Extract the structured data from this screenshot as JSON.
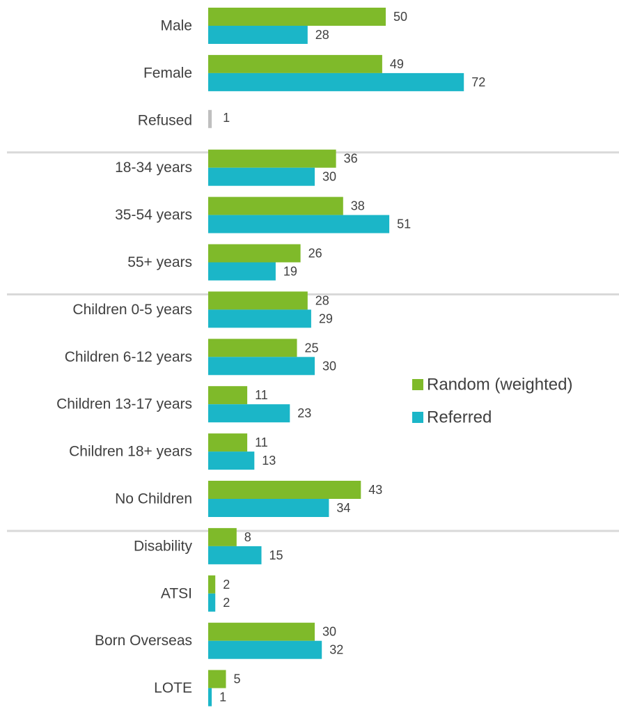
{
  "chart_data": {
    "type": "bar",
    "orientation": "horizontal",
    "xlim": [
      0,
      100
    ],
    "grid": false,
    "legend_position": "right",
    "categories": [
      "Male",
      "Female",
      "Refused",
      "18-34 years",
      "35-54 years",
      "55+ years",
      "Children 0-5 years",
      "Children 6-12 years",
      "Children 13-17 years",
      "Children 18+ years",
      "No Children",
      "Disability",
      "ATSI",
      "Born Overseas",
      "LOTE"
    ],
    "groups": [
      [
        "Male",
        "Female",
        "Refused"
      ],
      [
        "18-34 years",
        "35-54 years",
        "55+ years"
      ],
      [
        "Children 0-5 years",
        "Children 6-12 years",
        "Children 13-17 years",
        "Children 18+ years",
        "No Children"
      ],
      [
        "Disability",
        "ATSI",
        "Born Overseas",
        "LOTE"
      ]
    ],
    "series": [
      {
        "name": "Random (weighted)",
        "color": "#7fba2a",
        "values": [
          50,
          49,
          null,
          36,
          38,
          26,
          28,
          25,
          11,
          11,
          43,
          8,
          2,
          30,
          5
        ]
      },
      {
        "name": "Referred",
        "color": "#1bb6c8",
        "values": [
          28,
          72,
          null,
          30,
          51,
          19,
          29,
          30,
          23,
          13,
          34,
          15,
          2,
          32,
          1
        ]
      }
    ],
    "extra_bars": [
      {
        "category": "Refused",
        "value": 1,
        "color": "#bfbfbf"
      }
    ]
  },
  "colors": {
    "separator": "#d9d9d9",
    "text": "#404040"
  }
}
